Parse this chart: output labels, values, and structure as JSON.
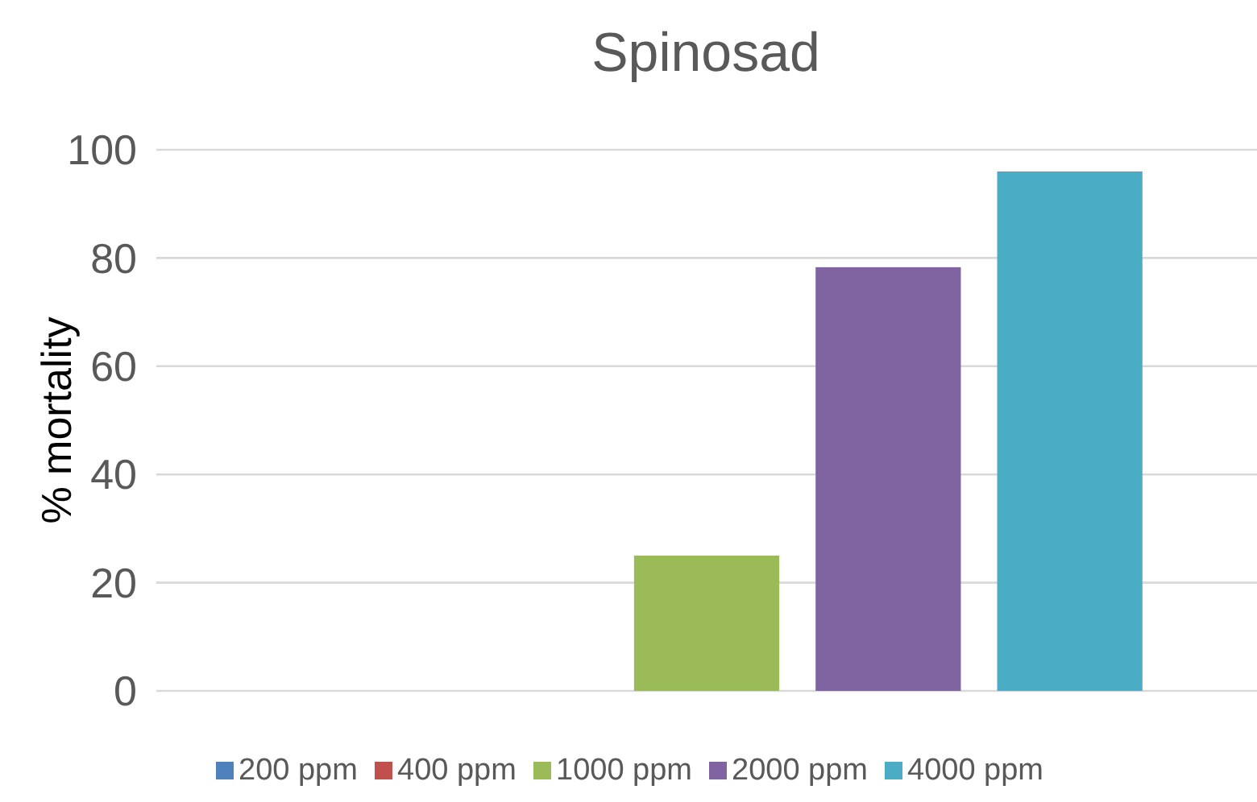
{
  "chart_data": {
    "type": "bar",
    "title": "Spinosad",
    "ylabel": "% mortality",
    "categories": [
      null
    ],
    "series": [
      {
        "name": "200 ppm",
        "color": "#4f81bd",
        "values": [
          0
        ]
      },
      {
        "name": "400 ppm",
        "color": "#c0504d",
        "values": [
          0
        ]
      },
      {
        "name": "1000 ppm",
        "color": "#9bbb59",
        "values": [
          25
        ]
      },
      {
        "name": "2000 ppm",
        "color": "#8064a2",
        "values": [
          78.3
        ]
      },
      {
        "name": "4000 ppm",
        "color": "#4bacc6",
        "values": [
          96
        ]
      }
    ],
    "ylim": [
      0,
      100
    ],
    "yticks": [
      0,
      20,
      40,
      60,
      80,
      100
    ],
    "grid": "y",
    "legend": "bottom"
  }
}
